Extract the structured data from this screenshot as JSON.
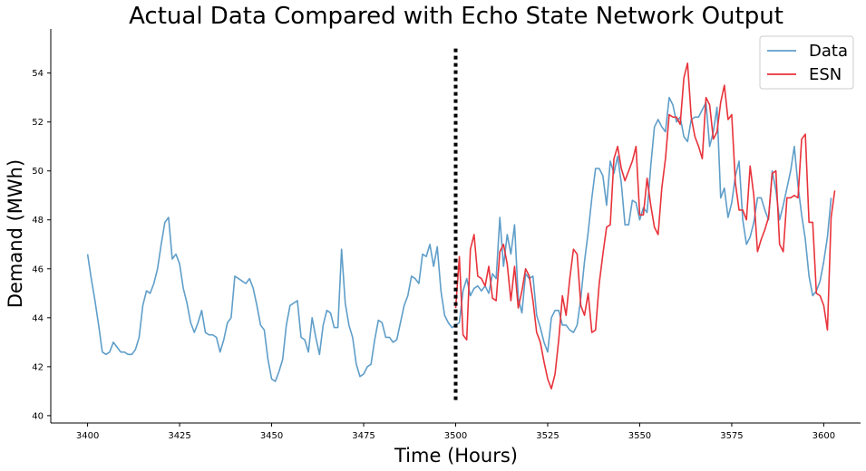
{
  "chart_data": {
    "type": "line",
    "title": "Actual Data Compared with Echo State Network Output",
    "xlabel": "Time (Hours)",
    "ylabel": "Demand (MWh)",
    "xlim": [
      3390,
      3610
    ],
    "ylim": [
      39.7,
      55.8
    ],
    "xticks": [
      3400,
      3425,
      3450,
      3475,
      3500,
      3525,
      3550,
      3575,
      3600
    ],
    "yticks": [
      40,
      42,
      44,
      46,
      48,
      50,
      52,
      54
    ],
    "grid": false,
    "legend_position": "top-right",
    "divider": {
      "x": 3500,
      "y_range": [
        40.5,
        55.0
      ],
      "style": "dotted",
      "color": "#000000"
    },
    "series": [
      {
        "name": "Data",
        "color": "#5f9ec9",
        "x_start": 3400,
        "values": [
          46.6,
          45.6,
          44.7,
          43.7,
          42.6,
          42.5,
          42.6,
          43.0,
          42.8,
          42.6,
          42.6,
          42.5,
          42.5,
          42.7,
          43.2,
          44.5,
          45.1,
          45.0,
          45.4,
          46.0,
          47.0,
          47.9,
          48.1,
          46.4,
          46.6,
          46.2,
          45.2,
          44.6,
          43.8,
          43.4,
          43.8,
          44.3,
          43.4,
          43.3,
          43.3,
          43.2,
          42.6,
          43.1,
          43.8,
          44.0,
          45.7,
          45.6,
          45.5,
          45.4,
          45.6,
          45.2,
          44.5,
          43.7,
          43.5,
          42.3,
          41.5,
          41.4,
          41.8,
          42.3,
          43.7,
          44.5,
          44.6,
          44.7,
          43.2,
          43.1,
          42.6,
          44.0,
          43.2,
          42.5,
          43.7,
          44.3,
          44.2,
          43.6,
          43.6,
          46.8,
          44.6,
          43.7,
          43.2,
          42.1,
          41.6,
          41.7,
          42.0,
          42.1,
          43.1,
          43.9,
          43.8,
          43.2,
          43.2,
          43.0,
          43.1,
          43.8,
          44.5,
          44.9,
          45.7,
          45.6,
          45.4,
          46.6,
          46.5,
          47.0,
          46.1,
          46.9,
          45.1,
          44.1,
          43.8,
          43.6,
          43.7,
          43.8,
          45.1,
          45.6,
          44.9,
          45.2,
          45.3,
          45.1,
          45.3,
          45.0,
          45.8,
          45.6,
          48.1,
          46.1,
          47.4,
          46.6,
          47.8,
          44.8,
          44.2,
          45.8,
          45.6,
          45.7,
          44.1,
          43.6,
          43.0,
          42.6,
          44.0,
          44.3,
          44.3,
          43.7,
          43.7,
          43.5,
          43.4,
          43.7,
          44.8,
          46.3,
          47.5,
          48.9,
          50.1,
          50.1,
          49.8,
          48.6,
          50.4,
          49.9,
          50.6,
          49.5,
          47.8,
          47.8,
          48.8,
          48.7,
          48.0,
          48.5,
          48.3,
          50.2,
          51.8,
          52.1,
          51.8,
          51.6,
          53.0,
          52.7,
          52.0,
          52.2,
          51.4,
          51.2,
          52.1,
          52.2,
          52.2,
          52.5,
          52.8,
          51.0,
          51.6,
          52.6,
          48.9,
          49.3,
          48.1,
          48.7,
          49.8,
          50.4,
          48.0,
          47.0,
          47.3,
          47.9,
          48.9,
          48.9,
          48.4,
          48.0,
          50.0,
          49.2,
          48.0,
          48.6,
          49.3,
          50.0,
          51.0,
          49.4,
          48.2,
          47.2,
          45.7,
          44.9,
          45.1,
          45.5,
          46.3,
          47.3,
          48.9
        ]
      },
      {
        "name": "ESN",
        "color": "#e8333b",
        "x_start": 3500,
        "values": [
          44.4,
          46.5,
          43.3,
          43.1,
          46.8,
          47.4,
          45.7,
          45.6,
          45.3,
          46.1,
          44.8,
          44.7,
          46.7,
          47.0,
          46.2,
          44.7,
          46.1,
          44.4,
          45.1,
          46.0,
          45.7,
          44.7,
          43.4,
          43.0,
          42.2,
          41.5,
          41.1,
          41.7,
          43.1,
          44.9,
          44.1,
          45.6,
          46.8,
          46.6,
          44.5,
          44.1,
          45.0,
          43.4,
          43.5,
          45.4,
          46.6,
          47.7,
          47.8,
          50.5,
          51.0,
          50.1,
          49.6,
          50.0,
          50.4,
          51.0,
          48.2,
          48.2,
          49.7,
          48.6,
          47.7,
          47.4,
          49.3,
          50.5,
          52.3,
          52.2,
          52.2,
          51.9,
          53.8,
          54.4,
          52.2,
          51.4,
          51.0,
          50.5,
          53.0,
          52.7,
          51.3,
          51.6,
          52.8,
          53.5,
          52.1,
          52.3,
          49.5,
          48.4,
          48.4,
          48.0,
          50.2,
          49.0,
          46.7,
          47.2,
          47.6,
          48.1,
          49.9,
          50.0,
          47.0,
          46.7,
          48.9,
          48.9,
          49.0,
          48.9,
          51.3,
          51.5,
          47.9,
          47.9,
          45.0,
          44.9,
          44.5,
          43.5,
          48.1,
          49.2
        ]
      }
    ]
  }
}
